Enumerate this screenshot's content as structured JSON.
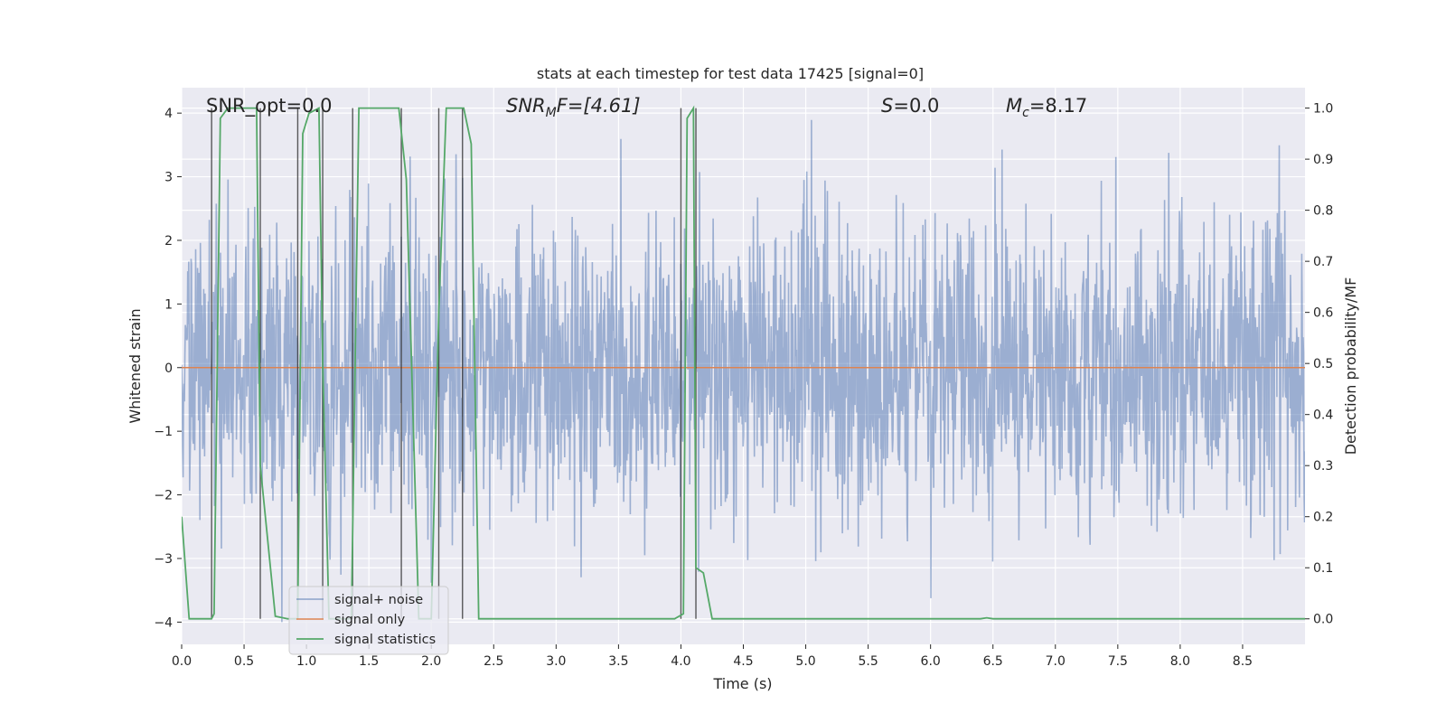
{
  "chart_data": {
    "type": "line",
    "title": "stats at each timestep for test data 17425 [signal=0]",
    "xlabel": "Time (s)",
    "ylabel": "Whitened strain",
    "y2label": "Detection probability/MF",
    "xlim": [
      0.0,
      9.0
    ],
    "ylim": [
      -4.35,
      4.4
    ],
    "y2lim": [
      -0.05,
      1.04
    ],
    "xticks": [
      0.0,
      0.5,
      1.0,
      1.5,
      2.0,
      2.5,
      3.0,
      3.5,
      4.0,
      4.5,
      5.0,
      5.5,
      6.0,
      6.5,
      7.0,
      7.5,
      8.0,
      8.5
    ],
    "xtick_labels": [
      "0.0",
      "0.5",
      "1.0",
      "1.5",
      "2.0",
      "2.5",
      "3.0",
      "3.5",
      "4.0",
      "4.5",
      "5.0",
      "5.5",
      "6.0",
      "6.5",
      "7.0",
      "7.5",
      "8.0",
      "8.5"
    ],
    "yticks": [
      -4,
      -3,
      -2,
      -1,
      0,
      1,
      2,
      3,
      4
    ],
    "ytick_labels": [
      "−4",
      "−3",
      "−2",
      "−1",
      "0",
      "1",
      "2",
      "3",
      "4"
    ],
    "y2ticks": [
      0.0,
      0.1,
      0.2,
      0.3,
      0.4,
      0.5,
      0.6,
      0.7,
      0.8,
      0.9,
      1.0
    ],
    "y2tick_labels": [
      "0.0",
      "0.1",
      "0.2",
      "0.3",
      "0.4",
      "0.5",
      "0.6",
      "0.7",
      "0.8",
      "0.9",
      "1.0"
    ],
    "annotations": {
      "snr_opt": "SNR_opt=0.0",
      "snr_mf_main": "SNR",
      "snr_mf_sub": "M",
      "snr_mf_rest": "F=[4.61]",
      "s_var": "S",
      "s_rest": "=0.0",
      "mc_var": "M",
      "mc_sub": "c",
      "mc_rest": "=8.17"
    },
    "legend": {
      "location": "lower left",
      "entries": [
        "signal+ noise",
        "signal only",
        "signal statistics"
      ]
    },
    "series": [
      {
        "name": "signal+ noise",
        "color": "#4c72b0",
        "style": "dense noise, approx. amplitude range -4.0 to 3.9",
        "y_range": [
          -4.0,
          3.9
        ]
      },
      {
        "name": "signal only",
        "color": "#dd8452",
        "x": [
          0.0,
          9.0
        ],
        "y": [
          0.0,
          0.0
        ]
      },
      {
        "name": "signal statistics",
        "color": "#55a868",
        "axis": "right",
        "x": [
          0.0,
          0.06,
          0.24,
          0.26,
          0.31,
          0.37,
          0.6,
          0.63,
          0.75,
          0.85,
          0.93,
          0.97,
          1.02,
          1.1,
          1.13,
          1.18,
          1.36,
          1.42,
          1.74,
          1.8,
          1.9,
          2.0,
          2.06,
          2.12,
          2.26,
          2.32,
          2.38,
          3.95,
          4.02,
          4.05,
          4.1,
          4.12,
          4.18,
          4.25,
          6.4,
          6.45,
          6.5,
          9.0
        ],
        "y": [
          0.2,
          0.0,
          0.0,
          0.01,
          0.98,
          1.0,
          1.0,
          0.3,
          0.005,
          0.0,
          0.0,
          0.95,
          0.99,
          1.0,
          0.5,
          0.0,
          0.0,
          1.0,
          1.0,
          0.86,
          0.0,
          0.0,
          0.6,
          1.0,
          1.0,
          0.93,
          0.0,
          0.0,
          0.01,
          0.98,
          1.0,
          0.1,
          0.09,
          0.0,
          0.0,
          0.002,
          0.0,
          0.0
        ]
      },
      {
        "name": "MF markers",
        "color": "#333333",
        "style": "vertical lines",
        "x": [
          0.24,
          0.63,
          0.93,
          1.13,
          1.37,
          1.76,
          2.06,
          2.25,
          4.0,
          4.12
        ],
        "ymin": -0.0,
        "ymax": 1.0
      }
    ]
  }
}
